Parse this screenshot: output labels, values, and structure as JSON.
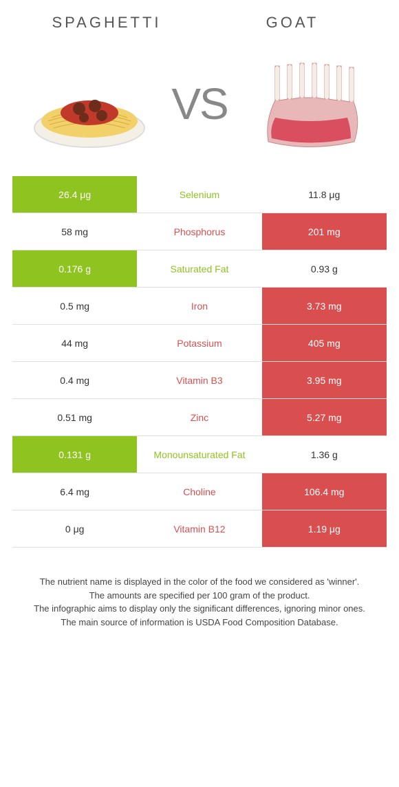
{
  "header": {
    "left": "SPAGHETTI",
    "right": "GOAT",
    "vs": "VS"
  },
  "colors": {
    "left_winner_bg": "#8fc31f",
    "right_winner_bg": "#d94f4f",
    "nutrient_left_win": "#8fc31f",
    "nutrient_right_win": "#d94f4f",
    "border": "#e0e0e0",
    "text": "#333333",
    "background": "#ffffff"
  },
  "rows": [
    {
      "nutrient": "Selenium",
      "left": "26.4 μg",
      "right": "11.8 μg",
      "winner": "left"
    },
    {
      "nutrient": "Phosphorus",
      "left": "58 mg",
      "right": "201 mg",
      "winner": "right"
    },
    {
      "nutrient": "Saturated Fat",
      "left": "0.176 g",
      "right": "0.93 g",
      "winner": "left"
    },
    {
      "nutrient": "Iron",
      "left": "0.5 mg",
      "right": "3.73 mg",
      "winner": "right"
    },
    {
      "nutrient": "Potassium",
      "left": "44 mg",
      "right": "405 mg",
      "winner": "right"
    },
    {
      "nutrient": "Vitamin B3",
      "left": "0.4 mg",
      "right": "3.95 mg",
      "winner": "right"
    },
    {
      "nutrient": "Zinc",
      "left": "0.51 mg",
      "right": "5.27 mg",
      "winner": "right"
    },
    {
      "nutrient": "Monounsaturated Fat",
      "left": "0.131 g",
      "right": "1.36 g",
      "winner": "left"
    },
    {
      "nutrient": "Choline",
      "left": "6.4 mg",
      "right": "106.4 mg",
      "winner": "right"
    },
    {
      "nutrient": "Vitamin B12",
      "left": "0 μg",
      "right": "1.19 μg",
      "winner": "right"
    }
  ],
  "footer": {
    "line1": "The nutrient name is displayed in the color of the food we considered as 'winner'.",
    "line2": "The amounts are specified per 100 gram of the product.",
    "line3": "The infographic aims to display only the significant differences, ignoring minor ones.",
    "line4": "The main source of information is USDA Food Composition Database."
  },
  "typography": {
    "header_fontsize": 22,
    "vs_fontsize": 64,
    "cell_fontsize": 14,
    "footer_fontsize": 13
  }
}
